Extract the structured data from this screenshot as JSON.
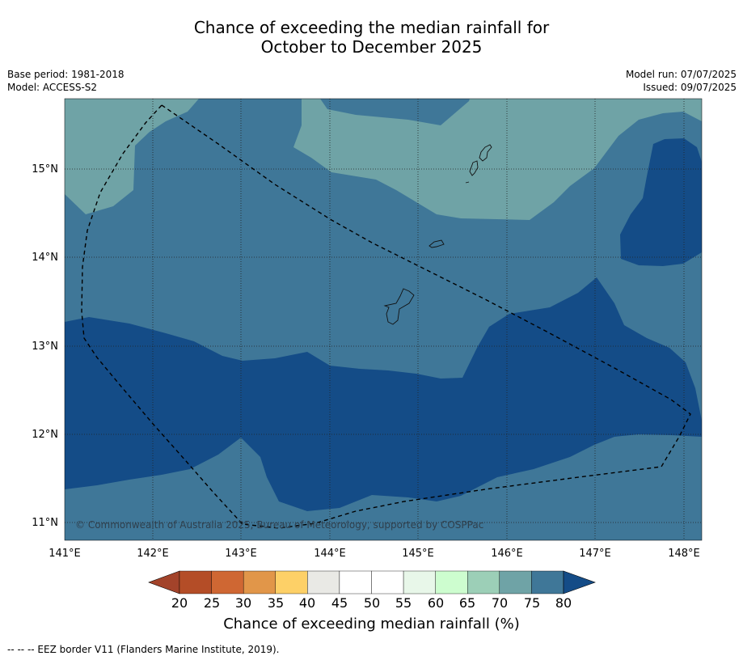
{
  "title": {
    "line1": "Chance of exceeding the median rainfall for",
    "line2": "October to December 2025"
  },
  "meta": {
    "base_period": "Base period: 1981-2018",
    "model": "Model: ACCESS-S2",
    "model_run": "Model run: 07/07/2025",
    "issued": "Issued: 09/07/2025"
  },
  "map": {
    "x_ticks": [
      "141°E",
      "142°E",
      "143°E",
      "144°E",
      "145°E",
      "146°E",
      "147°E",
      "148°E"
    ],
    "y_ticks": [
      "15°N",
      "14°N",
      "13°N",
      "12°N",
      "11°N"
    ],
    "copyright": "© Commonwealth of Australia 2025, Bureau of Meteorology, supported by COSPPac",
    "colors": {
      "band_70_75": "#6fa3a6",
      "band_75_80": "#3f7798",
      "band_80_plus": "#144c87"
    }
  },
  "colorbar": {
    "ticks": [
      "20",
      "25",
      "30",
      "35",
      "40",
      "45",
      "50",
      "55",
      "60",
      "65",
      "70",
      "75",
      "80"
    ],
    "colors": [
      "#b44d27",
      "#cf6733",
      "#e19649",
      "#fdd067",
      "#e9e9e5",
      "#ffffff",
      "#ffffff",
      "#e8f7e9",
      "#cdfdcf",
      "#9ccfb7",
      "#6fa3a6",
      "#3f7798"
    ],
    "low_extend_color": "#a3432a",
    "high_extend_color": "#144c87",
    "title": "Chance of exceeding median rainfall (%)"
  },
  "footnote": "--  --  -- EEZ border V11 (Flanders Marine Institute, 2019)."
}
